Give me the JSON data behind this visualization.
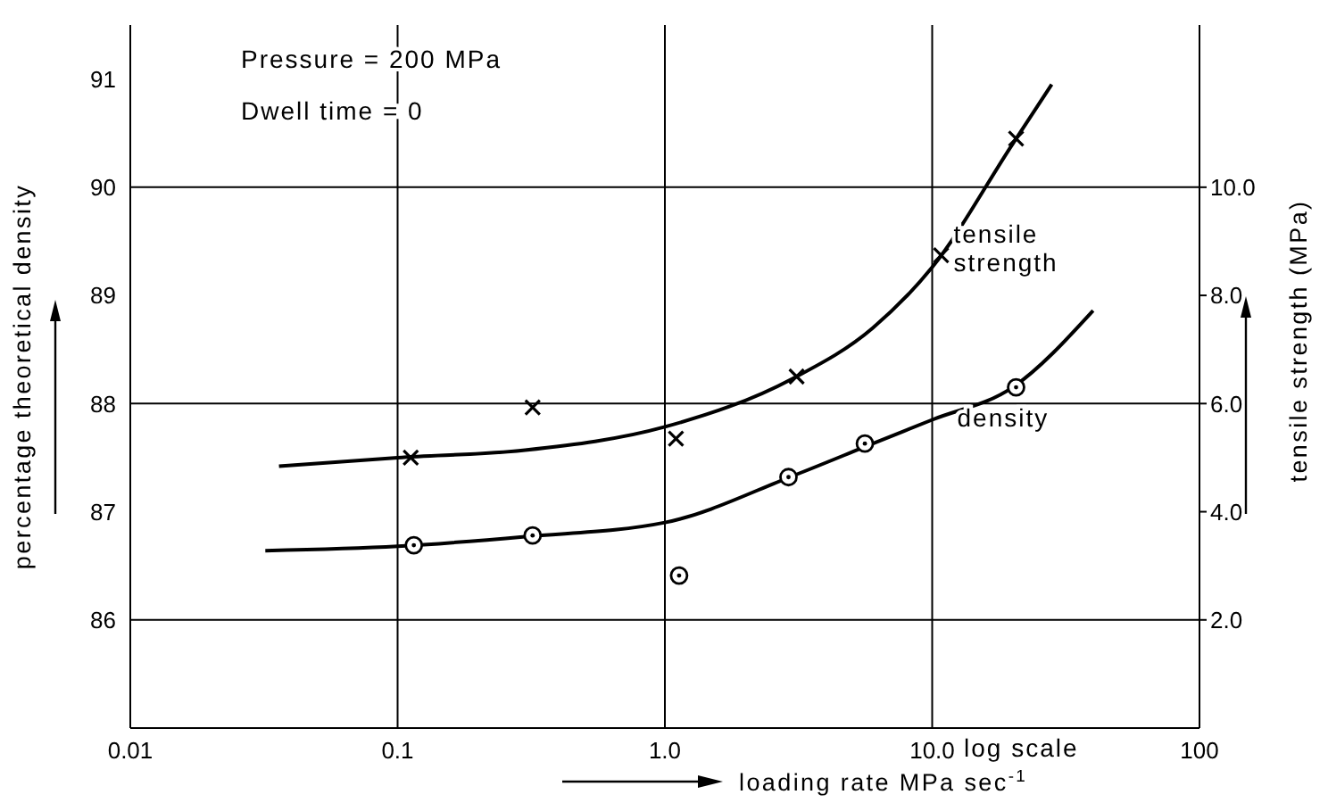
{
  "chart_data": {
    "type": "line",
    "xlabel": "loading rate  MPa sec$^{-1}$",
    "ylabel": "percentage theoretical density",
    "y2label": "tensile strength (MPa)",
    "annotations": [
      "Pressure = 200 MPa",
      "Dwell time = 0",
      "log scale"
    ],
    "log": "x",
    "grid": "x",
    "xlim": [
      0.01,
      100
    ],
    "xticks": [
      {
        "value": 0.01,
        "label": "0.01"
      },
      {
        "value": 0.1,
        "label": "0.1"
      },
      {
        "value": 1,
        "label": "1.0"
      },
      {
        "value": 10,
        "label": "10.0"
      },
      100
    ],
    "ylim": [
      85,
      91.5
    ],
    "yticks": [
      86,
      87,
      88,
      89,
      90,
      91
    ],
    "y2lim": [
      0,
      13
    ],
    "y2ticks": [
      {
        "value": 2,
        "label": "2.0"
      },
      {
        "value": 4,
        "label": "4.0"
      },
      {
        "value": 6,
        "label": "6.0"
      },
      {
        "value": 8,
        "label": "8.0"
      },
      {
        "value": 10,
        "label": "10.0"
      }
    ],
    "ref_lines": [
      {
        "axis": "y",
        "value": 86,
        "color": "#000000"
      },
      {
        "axis": "y",
        "value": 88,
        "color": "#000000"
      },
      {
        "axis": "y",
        "value": 90,
        "color": "#000000"
      }
    ],
    "series": [
      {
        "name": "tensile strength",
        "axis": "y2",
        "color": "#000000",
        "marker": "none",
        "x": [
          0.036,
          0.1,
          0.3,
          1,
          3,
          6,
          10,
          20,
          28
        ],
        "values": [
          4.84,
          5.0,
          5.14,
          5.57,
          6.46,
          7.4,
          8.52,
          10.8,
          11.9
        ]
      },
      {
        "type": "scatter",
        "axis": "y2",
        "color": "#000000",
        "marker": "cross",
        "x": [
          0.112,
          0.32,
          1.1,
          3.11,
          10.8,
          20.6
        ],
        "values": [
          5.0,
          5.93,
          5.35,
          6.5,
          8.74,
          10.9
        ]
      },
      {
        "name": "density",
        "color": "#000000",
        "marker": "none",
        "x": [
          0.032,
          0.1,
          0.3,
          1,
          3,
          6,
          10,
          20,
          40
        ],
        "values": [
          86.64,
          86.68,
          86.77,
          86.9,
          87.33,
          87.63,
          87.85,
          88.15,
          88.86
        ]
      },
      {
        "type": "scatter",
        "color": "#000000",
        "marker": "circle",
        "x": [
          0.115,
          0.32,
          1.13,
          2.9,
          5.6,
          20.6
        ],
        "values": [
          86.69,
          86.78,
          86.41,
          87.32,
          87.63,
          88.15
        ]
      }
    ]
  }
}
